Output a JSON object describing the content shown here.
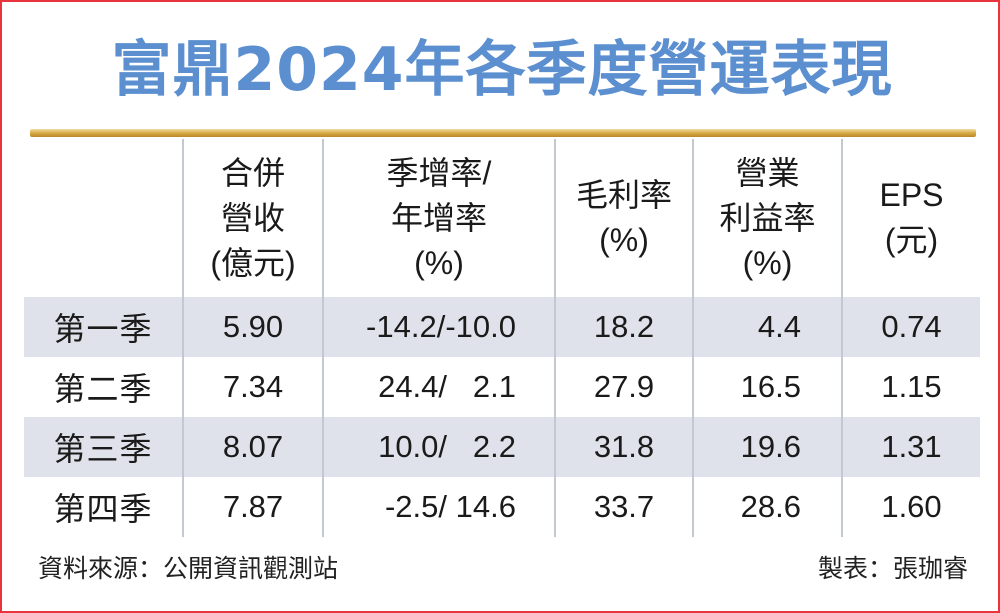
{
  "title": "富鼎2024年各季度營運表現",
  "columns": [
    {
      "lines": []
    },
    {
      "lines": [
        "合併",
        "營收",
        "(億元)"
      ]
    },
    {
      "lines": [
        "季增率/",
        "年增率",
        "(%)"
      ]
    },
    {
      "lines": [
        "毛利率",
        "(%)"
      ]
    },
    {
      "lines": [
        "營業",
        "利益率",
        "(%)"
      ]
    },
    {
      "lines": [
        "EPS",
        "(元)"
      ]
    }
  ],
  "rows": [
    {
      "label": "第一季",
      "revenue": "5.90",
      "qoq": "-14.2",
      "yoy": "-10.0",
      "gross_margin": "18.2",
      "operating_margin": "4.4",
      "eps": "0.74"
    },
    {
      "label": "第二季",
      "revenue": "7.34",
      "qoq": "24.4",
      "yoy": "2.1",
      "gross_margin": "27.9",
      "operating_margin": "16.5",
      "eps": "1.15"
    },
    {
      "label": "第三季",
      "revenue": "8.07",
      "qoq": "10.0",
      "yoy": "2.2",
      "gross_margin": "31.8",
      "operating_margin": "19.6",
      "eps": "1.31"
    },
    {
      "label": "第四季",
      "revenue": "7.87",
      "qoq": "-2.5",
      "yoy": "14.6",
      "gross_margin": "33.7",
      "operating_margin": "28.6",
      "eps": "1.60"
    }
  ],
  "footer": {
    "source": "資料來源：公開資訊觀測站",
    "author": "製表：張珈睿"
  },
  "colors": {
    "title": "#5b8fd0",
    "border": "#e8343c",
    "row_shade": "#dfe2ea",
    "rule": "#d4a73e"
  },
  "chart_data": {
    "type": "table",
    "title": "富鼎2024年各季度營運表現",
    "headers": [
      "",
      "合併營收(億元)",
      "季增率/年增率(%)",
      "毛利率(%)",
      "營業利益率(%)",
      "EPS(元)"
    ],
    "rows": [
      [
        "第一季",
        5.9,
        "-14.2/-10.0",
        18.2,
        4.4,
        0.74
      ],
      [
        "第二季",
        7.34,
        "24.4/2.1",
        27.9,
        16.5,
        1.15
      ],
      [
        "第三季",
        8.07,
        "10.0/2.2",
        31.8,
        19.6,
        1.31
      ],
      [
        "第四季",
        7.87,
        "-2.5/14.6",
        33.7,
        28.6,
        1.6
      ]
    ]
  }
}
